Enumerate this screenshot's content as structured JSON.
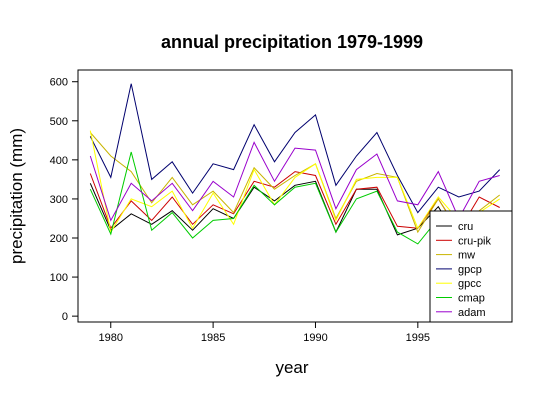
{
  "chart_data": {
    "type": "line",
    "title": "annual precipitation 1979-1999",
    "xlabel": "year",
    "ylabel": "precipitation (mm)",
    "xlim": [
      1978.4,
      1999.6
    ],
    "ylim": [
      -15,
      630
    ],
    "x_ticks": [
      1980,
      1985,
      1990,
      1995
    ],
    "y_ticks": [
      0,
      100,
      200,
      300,
      400,
      500,
      600
    ],
    "x": [
      1979,
      1980,
      1981,
      1982,
      1983,
      1984,
      1985,
      1986,
      1987,
      1988,
      1989,
      1990,
      1991,
      1992,
      1993,
      1994,
      1995,
      1996,
      1997,
      1998,
      1999
    ],
    "legend_position": "bottom-right",
    "series": [
      {
        "name": "cru",
        "color": "#000000",
        "values": [
          340,
          220,
          262,
          235,
          270,
          220,
          275,
          250,
          330,
          295,
          335,
          345,
          215,
          325,
          325,
          208,
          225,
          280,
          195,
          252,
          260
        ]
      },
      {
        "name": "cru-pik",
        "color": "#cc0000",
        "values": [
          365,
          225,
          295,
          245,
          305,
          235,
          285,
          262,
          345,
          330,
          370,
          360,
          235,
          325,
          330,
          230,
          225,
          300,
          218,
          305,
          278
        ]
      },
      {
        "name": "mw",
        "color": "#c8b400",
        "values": [
          470,
          410,
          370,
          290,
          355,
          285,
          320,
          265,
          380,
          325,
          360,
          390,
          250,
          345,
          365,
          355,
          215,
          300,
          215,
          270,
          310
        ]
      },
      {
        "name": "gpcp",
        "color": "#00006e",
        "values": [
          460,
          355,
          595,
          350,
          395,
          315,
          390,
          375,
          490,
          395,
          470,
          515,
          335,
          410,
          470,
          360,
          265,
          330,
          305,
          320,
          375
        ]
      },
      {
        "name": "gpcc",
        "color": "#ffff00",
        "values": [
          475,
          215,
          300,
          280,
          320,
          225,
          315,
          235,
          375,
          285,
          355,
          390,
          245,
          350,
          355,
          355,
          225,
          305,
          245,
          265,
          300
        ]
      },
      {
        "name": "cmap",
        "color": "#00cc00",
        "values": [
          325,
          210,
          420,
          220,
          265,
          200,
          245,
          250,
          335,
          285,
          330,
          340,
          215,
          300,
          320,
          215,
          185,
          250,
          240,
          250,
          250
        ]
      },
      {
        "name": "adam",
        "color": "#9900cc",
        "values": [
          410,
          245,
          340,
          295,
          340,
          270,
          345,
          305,
          445,
          345,
          430,
          425,
          275,
          375,
          415,
          295,
          285,
          370,
          250,
          345,
          360
        ]
      }
    ]
  }
}
